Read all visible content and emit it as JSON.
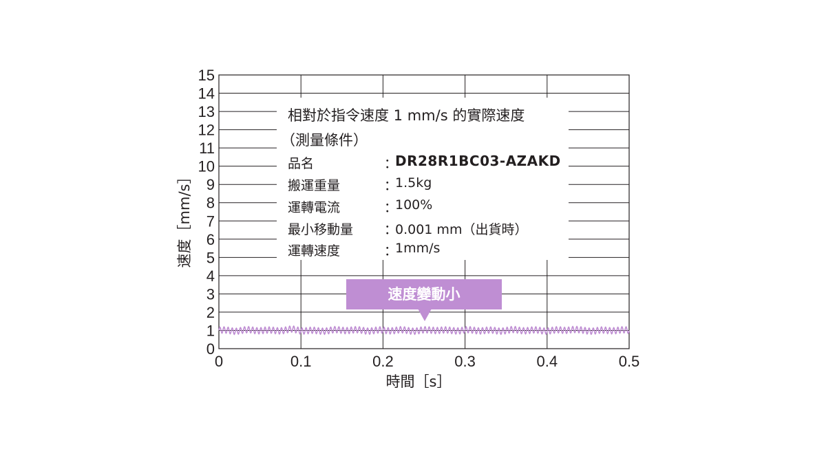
{
  "chart_data": {
    "type": "line",
    "title": "相對於指令速度 1 mm/s 的實際速度",
    "xlabel": "時間［s］",
    "ylabel": "速度［mm/s］",
    "xlim": [
      0,
      0.5
    ],
    "ylim": [
      0,
      15
    ],
    "xticks": [
      0,
      0.1,
      0.2,
      0.3,
      0.4,
      0.5
    ],
    "xtick_labels": [
      "0",
      "0.1",
      "0.2",
      "0.3",
      "0.4",
      "0.5"
    ],
    "yticks": [
      0,
      1,
      2,
      3,
      4,
      5,
      6,
      7,
      8,
      9,
      10,
      11,
      12,
      13,
      14,
      15
    ],
    "ytick_labels": [
      "0",
      "1",
      "2",
      "3",
      "4",
      "5",
      "6",
      "7",
      "8",
      "9",
      "10",
      "11",
      "12",
      "13",
      "14",
      "15"
    ],
    "grid": true,
    "line_color": "#bf8ed3",
    "series": [
      {
        "x": [
          0,
          0.02,
          0.04,
          0.06,
          0.08,
          0.09,
          0.1,
          0.12,
          0.14,
          0.16,
          0.18,
          0.2,
          0.22,
          0.24,
          0.25,
          0.26,
          0.28,
          0.3,
          0.32,
          0.34,
          0.36,
          0.38,
          0.4,
          0.42,
          0.43,
          0.44,
          0.46,
          0.48,
          0.5
        ],
        "values": [
          1.0,
          0.98,
          1.02,
          0.99,
          1.01,
          1.05,
          1.0,
          0.97,
          1.01,
          1.02,
          0.99,
          1.0,
          1.01,
          0.98,
          1.0,
          1.03,
          0.99,
          1.01,
          1.0,
          0.98,
          1.02,
          1.0,
          0.99,
          1.01,
          1.06,
          1.0,
          0.98,
          1.01,
          1.0
        ],
        "ripple_amplitude": 0.2
      }
    ],
    "annotation": "速度變動小"
  },
  "info": {
    "title_line1": "相對於指令速度 1 mm/s 的實際速度",
    "title_line2": "（測量條件）",
    "colon": "：",
    "specs": [
      {
        "label": "品名",
        "value": "DR28R1BC03-AZAKD"
      },
      {
        "label": "搬運重量",
        "value": "1.5kg"
      },
      {
        "label": "運轉電流",
        "value": "100%"
      },
      {
        "label": "最小移動量",
        "value": "0.001 mm（出貨時）"
      },
      {
        "label": "運轉速度",
        "value": "1mm/s"
      }
    ]
  }
}
